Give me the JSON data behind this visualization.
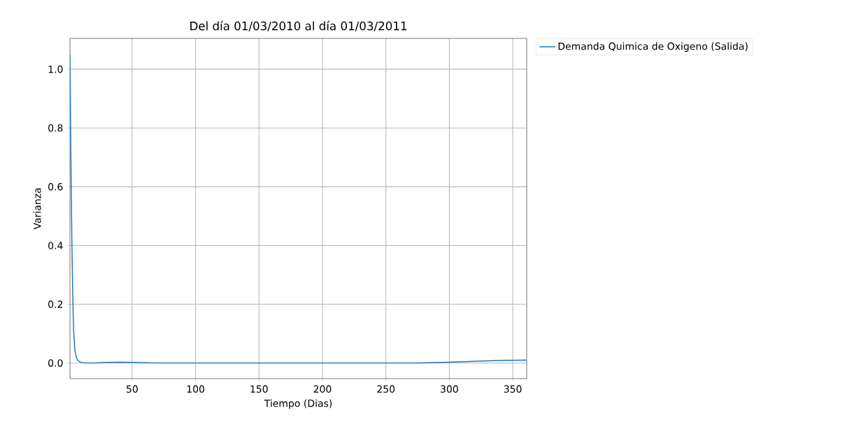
{
  "chart_data": {
    "type": "line",
    "title": "Del día 01/03/2010 al día 01/03/2011",
    "xlabel": "Tiempo (Dias)",
    "ylabel": "Varianza",
    "series": [
      {
        "name": "Demanda Quimica de Oxigeno (Salida)",
        "color": "#1f77b4",
        "x": [
          1,
          1.5,
          2,
          2.5,
          3,
          3.5,
          4,
          5,
          6,
          7,
          8,
          10,
          14,
          20,
          30,
          40,
          50,
          60,
          70,
          85,
          100,
          130,
          160,
          200,
          240,
          270,
          285,
          300,
          320,
          340,
          361
        ],
        "values": [
          1.05,
          0.8,
          0.6,
          0.42,
          0.28,
          0.17,
          0.1,
          0.04,
          0.02,
          0.01,
          0.006,
          0.002,
          0,
          0,
          0.002,
          0.003,
          0.002,
          0.001,
          0,
          0,
          0,
          0,
          0,
          0,
          0,
          0,
          0.001,
          0.003,
          0.006,
          0.009,
          0.01
        ]
      }
    ],
    "xlim": [
      1,
      361
    ],
    "ylim": [
      -0.053,
      1.105
    ],
    "xticks": [
      50,
      100,
      150,
      200,
      250,
      300,
      350
    ],
    "yticks": [
      {
        "value": 0,
        "label": "0.0"
      },
      {
        "value": 0.2,
        "label": "0.2"
      },
      {
        "value": 0.4,
        "label": "0.4"
      },
      {
        "value": 0.6,
        "label": "0.6"
      },
      {
        "value": 0.8,
        "label": "0.8"
      },
      {
        "value": 1.0,
        "label": "1.0"
      }
    ],
    "grid": true,
    "legend": "top right",
    "marker": "none",
    "line_style": "solid"
  }
}
